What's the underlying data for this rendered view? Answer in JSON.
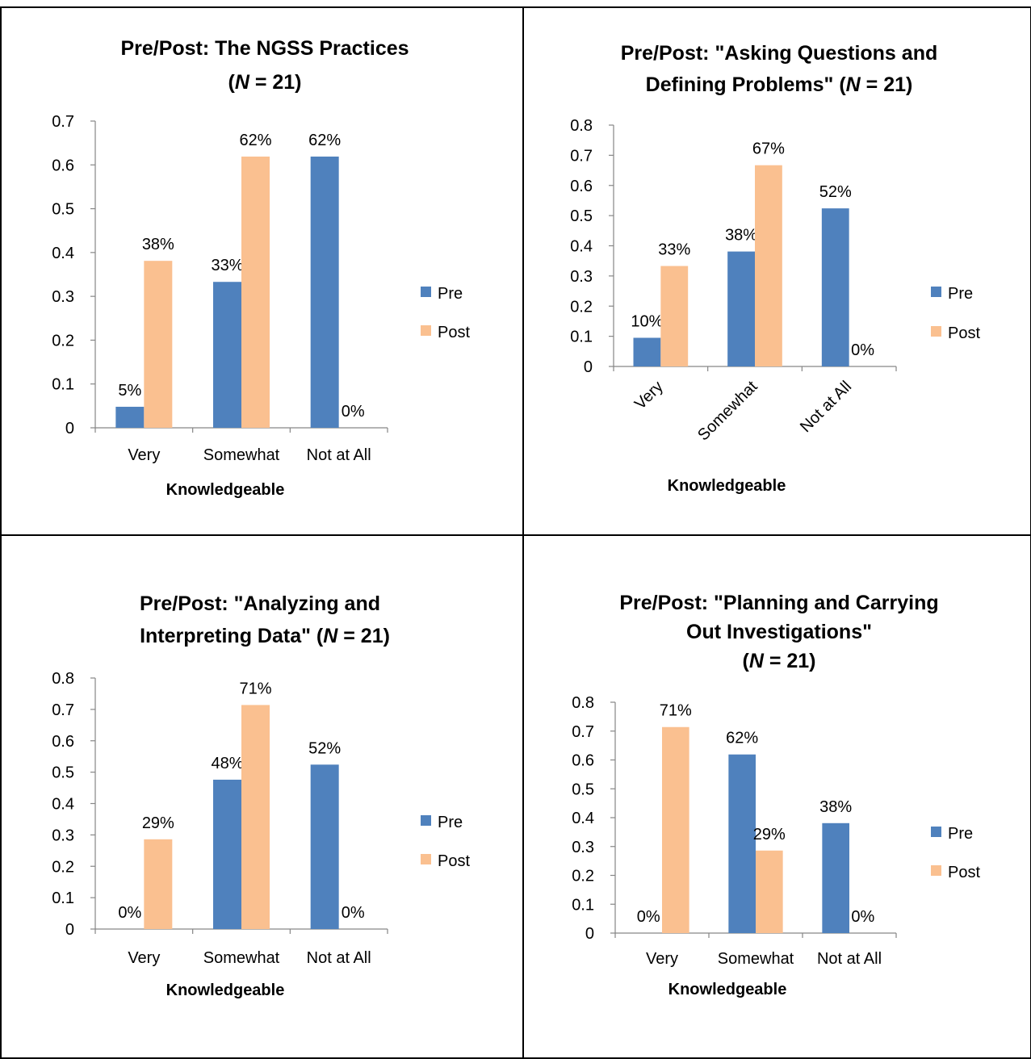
{
  "chart_data": [
    {
      "type": "bar",
      "title": "Pre/Post: The NGSS Practices",
      "title_n": "N",
      "title_n_value": " = 21)",
      "categories": [
        "Very",
        "Somewhat",
        "Not at All"
      ],
      "xlabel": "Knowledgeable",
      "ylabel": "",
      "ylim": [
        0,
        0.7
      ],
      "yticks": [
        "0",
        "0.1",
        "0.2",
        "0.3",
        "0.4",
        "0.5",
        "0.6",
        "0.7"
      ],
      "series": [
        {
          "name": "Pre",
          "values": [
            0.048,
            0.333,
            0.619
          ],
          "labels": [
            "5%",
            "33%",
            "62%"
          ]
        },
        {
          "name": "Post",
          "values": [
            0.381,
            0.619,
            0.0
          ],
          "labels": [
            "38%",
            "62%",
            "0%"
          ]
        }
      ],
      "legend": "right",
      "grid": false
    },
    {
      "type": "bar",
      "title": "Pre/Post: \"Asking Questions and Defining Problems\"",
      "title_n": "N",
      "title_n_value": " = 21)",
      "categories": [
        "Very",
        "Somewhat",
        "Not at All"
      ],
      "xlabel": "Knowledgeable",
      "ylabel": "",
      "ylim": [
        0,
        0.8
      ],
      "yticks": [
        "0",
        "0.1",
        "0.2",
        "0.3",
        "0.4",
        "0.5",
        "0.6",
        "0.7",
        "0.8"
      ],
      "series": [
        {
          "name": "Pre",
          "values": [
            0.095,
            0.381,
            0.524
          ],
          "labels": [
            "10%",
            "38%",
            "52%"
          ]
        },
        {
          "name": "Post",
          "values": [
            0.333,
            0.667,
            0.0
          ],
          "labels": [
            "33%",
            "67%",
            "0%"
          ]
        }
      ],
      "legend": "right",
      "grid": false
    },
    {
      "type": "bar",
      "title": "Pre/Post: \"Analyzing and Interpreting Data\"",
      "title_n": "N",
      "title_n_value": " = 21)",
      "categories": [
        "Very",
        "Somewhat",
        "Not at All"
      ],
      "xlabel": "Knowledgeable",
      "ylabel": "",
      "ylim": [
        0,
        0.8
      ],
      "yticks": [
        "0",
        "0.1",
        "0.2",
        "0.3",
        "0.4",
        "0.5",
        "0.6",
        "0.7",
        "0.8"
      ],
      "series": [
        {
          "name": "Pre",
          "values": [
            0.0,
            0.476,
            0.524
          ],
          "labels": [
            "0%",
            "48%",
            "52%"
          ]
        },
        {
          "name": "Post",
          "values": [
            0.286,
            0.714,
            0.0
          ],
          "labels": [
            "29%",
            "71%",
            "0%"
          ]
        }
      ],
      "legend": "right",
      "grid": false
    },
    {
      "type": "bar",
      "title": "Pre/Post: \"Planning and Carrying Out Investigations\"",
      "title_n": "N",
      "title_n_value": " = 21)",
      "categories": [
        "Very",
        "Somewhat",
        "Not at All"
      ],
      "xlabel": "Knowledgeable",
      "ylabel": "",
      "ylim": [
        0,
        0.8
      ],
      "yticks": [
        "0",
        "0.1",
        "0.2",
        "0.3",
        "0.4",
        "0.5",
        "0.6",
        "0.7",
        "0.8"
      ],
      "series": [
        {
          "name": "Pre",
          "values": [
            0.0,
            0.619,
            0.381
          ],
          "labels": [
            "0%",
            "62%",
            "38%"
          ]
        },
        {
          "name": "Post",
          "values": [
            0.714,
            0.286,
            0.0
          ],
          "labels": [
            "71%",
            "29%",
            "0%"
          ]
        }
      ],
      "legend": "right",
      "grid": false
    }
  ],
  "colors": {
    "pre": "#4F81BD",
    "post": "#FAC090",
    "border": "#000000",
    "axis": "#868686"
  }
}
